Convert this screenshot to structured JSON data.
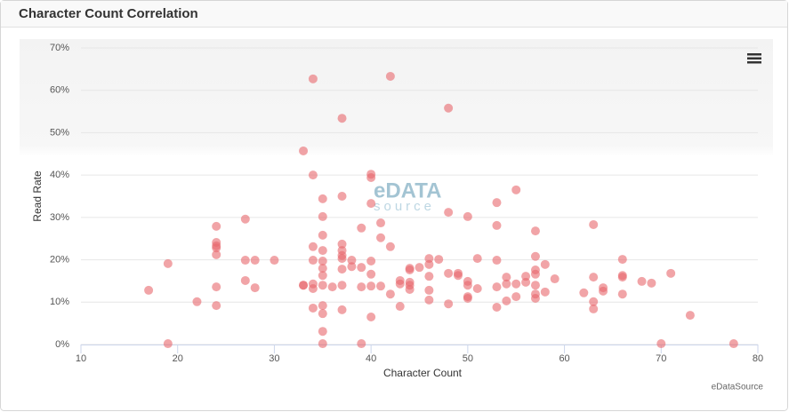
{
  "chart_data": {
    "type": "scatter",
    "title": "Character Count Correlation",
    "credits": "eDataSource",
    "watermark": [
      "eDATA",
      "source"
    ],
    "x_label": "Character Count",
    "y_label": "Read Rate",
    "color": "#e8686c",
    "xlim": [
      10,
      80
    ],
    "xticks": [
      10,
      20,
      30,
      40,
      50,
      60,
      70,
      80
    ],
    "ylim": [
      0,
      70
    ],
    "yticks": [
      {
        "value": 0,
        "label": "0%"
      },
      {
        "value": 10,
        "label": "10%"
      },
      {
        "value": 20,
        "label": "20%"
      },
      {
        "value": 30,
        "label": "30%"
      },
      {
        "value": 40,
        "label": "40%"
      },
      {
        "value": 50,
        "label": "50%"
      },
      {
        "value": 60,
        "label": "60%"
      },
      {
        "value": 70,
        "label": "70%"
      }
    ],
    "grid": true,
    "x": [
      17,
      19,
      19,
      22,
      24,
      24,
      24,
      24,
      24,
      24,
      24,
      27,
      27,
      27,
      28,
      28,
      30,
      33,
      33,
      33,
      34,
      34,
      34,
      34,
      34,
      34,
      34,
      35,
      35,
      35,
      35,
      35,
      35,
      35,
      35,
      35,
      35,
      35,
      35,
      36,
      37,
      37,
      37,
      37,
      37,
      37,
      37,
      37,
      37,
      38,
      38,
      39,
      39,
      39,
      39,
      40,
      40,
      40,
      40,
      40,
      40,
      40,
      41,
      41,
      41,
      42,
      42,
      42,
      43,
      43,
      43,
      44,
      44,
      44,
      44,
      44,
      45,
      46,
      46,
      46,
      46,
      46,
      47,
      48,
      48,
      48,
      48,
      49,
      49,
      50,
      50,
      50,
      50,
      50,
      51,
      51,
      53,
      53,
      53,
      53,
      53,
      54,
      54,
      54,
      55,
      55,
      55,
      56,
      56,
      57,
      57,
      57,
      57,
      57,
      57,
      57,
      58,
      58,
      59,
      62,
      63,
      63,
      63,
      63,
      64,
      64,
      66,
      66,
      66,
      66,
      68,
      69,
      70,
      71,
      73,
      77.5
    ],
    "values": [
      12.8,
      19.1,
      0.2,
      10.1,
      27.9,
      24.1,
      23.3,
      22.8,
      21.2,
      13.6,
      9.2,
      29.6,
      19.9,
      15.1,
      19.9,
      13.4,
      19.9,
      45.7,
      14,
      14,
      8.6,
      62.7,
      40,
      23.1,
      19.9,
      14.3,
      13.2,
      9.2,
      34.4,
      30.2,
      25.8,
      22.2,
      19.7,
      18,
      16.3,
      14,
      7.3,
      3.1,
      0.2,
      13.6,
      53.4,
      35,
      23.7,
      22.2,
      21,
      20.3,
      17.8,
      14,
      8.2,
      19.9,
      18.4,
      27.5,
      18.2,
      13.6,
      0.2,
      40.2,
      39.4,
      33.3,
      19.7,
      16.6,
      13.8,
      6.5,
      28.7,
      25.2,
      13.8,
      63.3,
      23.1,
      11.9,
      15.1,
      14.3,
      9,
      18,
      17.6,
      14.7,
      14,
      13,
      18.2,
      20.3,
      18.9,
      16.1,
      12.8,
      10.5,
      20.1,
      55.8,
      31.2,
      16.8,
      9.6,
      16.8,
      16.3,
      30.2,
      14.9,
      14,
      11.3,
      10.9,
      20.3,
      13.2,
      33.5,
      28.1,
      19.9,
      13.6,
      8.8,
      15.9,
      14.3,
      10.3,
      36.5,
      14.3,
      11.3,
      16.1,
      14.7,
      26.8,
      20.8,
      17.6,
      16.6,
      14,
      11.9,
      10.9,
      18.9,
      12.4,
      15.5,
      12.2,
      28.3,
      15.9,
      10.1,
      8.4,
      13.4,
      12.6,
      20.1,
      16.3,
      15.9,
      11.9,
      14.9,
      14.5,
      0.2,
      16.8,
      6.9,
      0.2
    ]
  }
}
